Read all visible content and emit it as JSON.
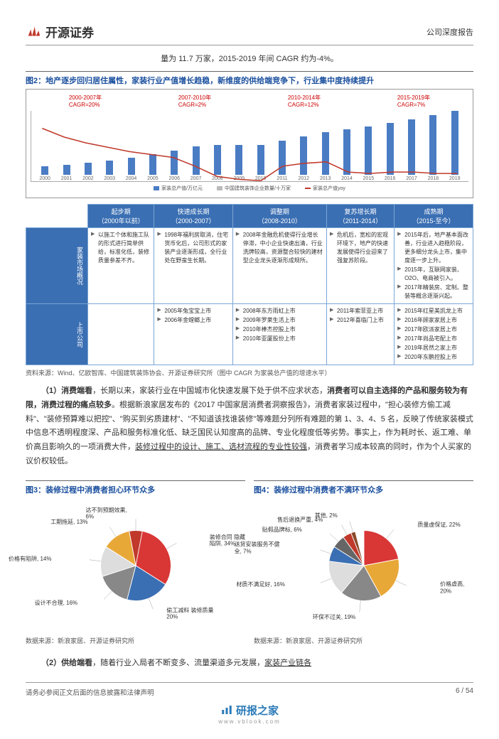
{
  "header": {
    "company_name": "开源证券",
    "report_type": "公司深度报告"
  },
  "intro": "量为 11.7 万家，2015-2019 年间 CAGR 约为-4%。",
  "figure2": {
    "title": "图2：地产逐步回归居住属性，家装行业产值增长趋稳，新维度的供给端竞争下，行业集中度持续提升",
    "type": "bar+line",
    "periods": [
      {
        "label": "2000-2007年",
        "cagr": "CAGR=20%",
        "color": "#c00"
      },
      {
        "label": "2007-2010年",
        "cagr": "CAGR=2%",
        "color": "#c00"
      },
      {
        "label": "2010-2014年",
        "cagr": "CAGR=12%",
        "color": "#c00"
      },
      {
        "label": "2015-2019年",
        "cagr": "CAGR=7%",
        "color": "#c00"
      }
    ],
    "years": [
      "2000",
      "2001",
      "2002",
      "2003",
      "2004",
      "2005",
      "2006",
      "2007",
      "2008",
      "2009",
      "2010",
      "2011",
      "2012",
      "2013",
      "2014",
      "2015",
      "2016",
      "2017",
      "2018",
      "2019"
    ],
    "bar_values": [
      0.3,
      0.35,
      0.42,
      0.5,
      0.6,
      0.72,
      0.85,
      1.0,
      1.05,
      1.05,
      1.05,
      1.2,
      1.35,
      1.5,
      1.6,
      1.7,
      1.82,
      1.95,
      2.1,
      2.25
    ],
    "line_values": [
      38,
      32,
      28,
      25,
      22,
      20,
      18,
      12,
      5,
      3,
      2,
      12,
      14,
      15,
      8,
      7,
      8,
      8,
      7,
      7
    ],
    "y_max": 2.5,
    "line_max": 50,
    "bar_color": "#4a7cc4",
    "line_color": "#c0392b",
    "legend_bar": "家装总产值/万亿元",
    "legend_grey": "中国建筑装饰企业数量/十万家",
    "legend_line": "家装总产值yoy"
  },
  "stage_table": {
    "stages": [
      {
        "title": "起步期",
        "sub": "（2000年以前）"
      },
      {
        "title": "快速成长期",
        "sub": "（2000-2007）"
      },
      {
        "title": "调整期",
        "sub": "（2008-2010）"
      },
      {
        "title": "复苏增长期",
        "sub": "（2011-2014）"
      },
      {
        "title": "成熟期",
        "sub": "（2015-至今）"
      }
    ],
    "row1_label": "家装市场概况",
    "row1": [
      [
        "以施工个体和施工队的形式进行简单供给，标准化低，装修质量参差不齐。"
      ],
      [
        "1998年福利房取消，住宅货币化后，公司形式的家装产业逐渐形成，全行业处在野蛮生长期。"
      ],
      [
        "2008年金融危机使得行业增长停滞，中小企业快速出清，行业洗牌较高，资源整合较快的建材型企业龙头逐渐形成规所。"
      ],
      [
        "危机后，宽松的宏观环境下，地产的快速发展使得行业迎来了强复苏阶段。"
      ],
      [
        "2015年后，地产基本面改善，行业进入趋稳阶段，更多细分龙头上市，集中度逐一步上升。",
        "2015年，互联网家装、O2O、电商被引入。",
        "2017年精装房、定制、整装等概念逐渐兴起。"
      ]
    ],
    "row2_label": "上市公司",
    "row2": [
      [],
      [
        "2005年兔宝宝上市",
        "2006年金螳螂上市"
      ],
      [
        "2008年东方雨虹上市",
        "2009年罗莱生活上市",
        "2010年棒杰控股上市",
        "2010年亚厦股份上市"
      ],
      [
        "2011年索菲亚上市",
        "2012年喜临门上市"
      ],
      [
        "2015年红星美凯龙上市",
        "2016年顾家家居上市",
        "2017年欧派家居上市",
        "2017年尚品宅配上市",
        "2019年居然之家上市",
        "2020年东鹏控股上市"
      ]
    ]
  },
  "source1": "资料来源：Wind、亿欧智库、中国建筑装饰协会、开源证券研究所（图中 CAGR 为家装总产值的增速水平）",
  "para1": "（1）消费端看，长期以来，家装行业在中国城市化快速发展下处于供不应求状态，消费者可以自主选择的产品和服务较为有限，消费过程的痛点较多。根据新浪家居发布的《2017 中国家居消费者洞察报告》，消费者家装过程中，\"担心装修方偷工减料\"、\"装修预算难以把控\"、\"购买到劣质建材\"、\"不知道该找谁装修\"等难题分列所有难题的第 1、3、4、5 名，反映了传统家装模式中信息不透明程度深、产品和服务标准化低、缺乏国民认知度高的品牌、专业化程度低等劣势。事实上，作为耗时长、返工难、单价高且影响久的一项消费大件，装修过程中的设计、施工、选材流程的专业性较强，消费者学习成本较高的同时，作为个人买家的议价权较低。",
  "figure3": {
    "title": "图3：装修过程中消费者担心环节众多",
    "type": "pie",
    "slices": [
      {
        "label": "装修合同\n隐藏陷阱,",
        "value": 34,
        "color": "#d93636"
      },
      {
        "label": "偷工减料\n装修质量",
        "value": 20,
        "color": "#3b6fb3"
      },
      {
        "label": "设计不合理,",
        "value": 16,
        "color": "#888"
      },
      {
        "label": "价格有陷阱,",
        "value": 14,
        "color": "#ddd"
      },
      {
        "label": "工期拖延,",
        "value": 13,
        "color": "#e8a838"
      },
      {
        "label": "达不到预期效果,",
        "value": 6,
        "color": "#c0392b"
      }
    ],
    "source": "数据来源：新浪家居、开源证券研究所"
  },
  "figure4": {
    "title": "图4：装修过程中消费者不满环节众多",
    "type": "pie",
    "slices": [
      {
        "label": "质量虚保证,",
        "value": 22,
        "color": "#d93636"
      },
      {
        "label": "价格虚高,",
        "value": 20,
        "color": "#e8a838"
      },
      {
        "label": "环保不过关,",
        "value": 19,
        "color": "#888"
      },
      {
        "label": "材质不满足好,",
        "value": 16,
        "color": "#ddd"
      },
      {
        "label": "送货安装服务不健全,",
        "value": 7,
        "color": "#3b6fb3"
      },
      {
        "label": "贴假品牌标,",
        "value": 6,
        "color": "#666"
      },
      {
        "label": "售后退换严重,",
        "value": 4,
        "color": "#c0392b"
      },
      {
        "label": "其他,",
        "value": 2,
        "color": "#8a4a2a"
      }
    ],
    "source": "数据来源：新浪家居、开源证券研究所"
  },
  "para2": "（2）供给端看，随着行业入局者不断变多、流量渠道多元发展，家装产业链各",
  "footer": {
    "disclaimer": "请务必参阅正文后面的信息披露和法律声明",
    "page": "6 / 54",
    "watermark": "研报之家",
    "watermark_url": "www.vblook.com"
  }
}
